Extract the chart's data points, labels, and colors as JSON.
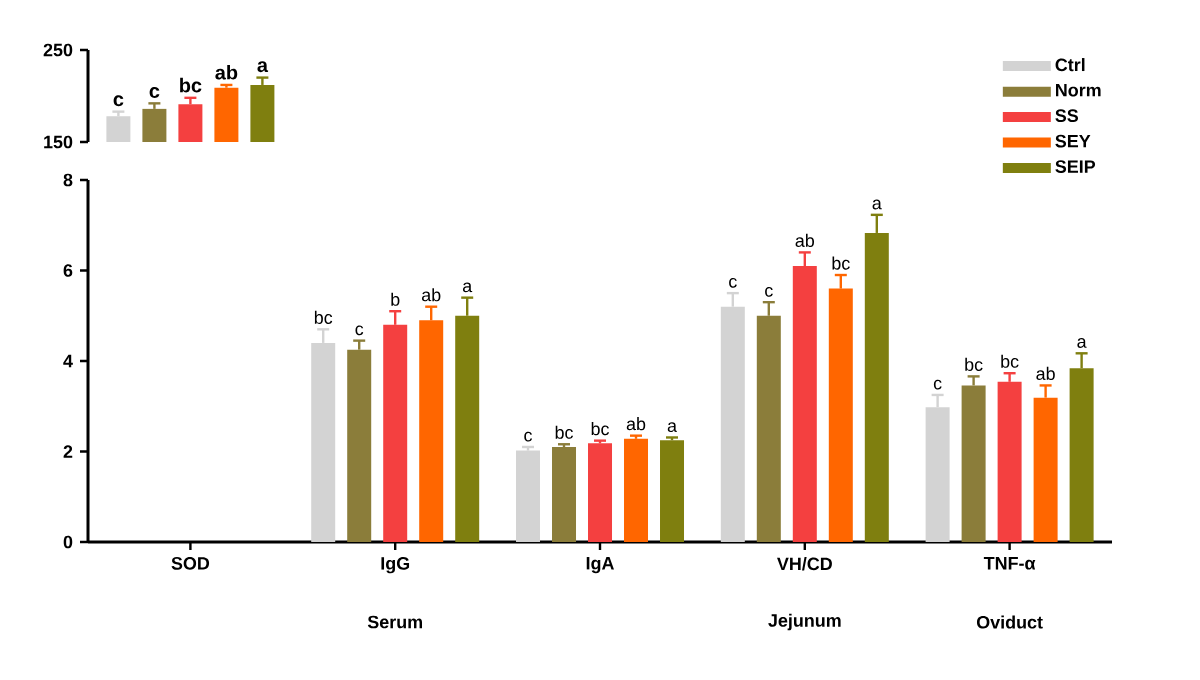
{
  "chart_data": [
    {
      "type": "bar",
      "categories": [
        "SOD",
        "IgG",
        "IgA",
        "VH/CD",
        "TNF-α"
      ],
      "ylim": [
        150,
        250
      ],
      "yticks": [
        150,
        250
      ],
      "tick_labels": "y",
      "series": [
        {
          "color": "#d3d3d3",
          "values": [
            178,
            null,
            null,
            null,
            null
          ],
          "errors": [
            5,
            null,
            null,
            null,
            null
          ]
        },
        {
          "color": "#8b7d3a",
          "values": [
            186,
            null,
            null,
            null,
            null
          ],
          "errors": [
            6,
            null,
            null,
            null,
            null
          ]
        },
        {
          "color": "#f44040",
          "values": [
            191,
            null,
            null,
            null,
            null
          ],
          "errors": [
            7,
            null,
            null,
            null,
            null
          ]
        },
        {
          "color": "#ff6600",
          "values": [
            209,
            null,
            null,
            null,
            null
          ],
          "errors": [
            3,
            null,
            null,
            null,
            null
          ]
        },
        {
          "color": "#7f7f0f",
          "values": [
            212,
            null,
            null,
            null,
            null
          ],
          "errors": [
            8,
            null,
            null,
            null,
            null
          ]
        }
      ],
      "annotations": [
        "c",
        "c",
        "bc",
        "ab",
        "a"
      ]
    },
    {
      "type": "bar",
      "categories": [
        "SOD",
        "IgG",
        "IgA",
        "VH/CD",
        "TNF-α"
      ],
      "ylim": [
        0,
        8
      ],
      "yticks": [
        0,
        2,
        4,
        6,
        8
      ],
      "legend": "top right",
      "series": [
        {
          "name": "Ctrl",
          "color": "#d3d3d3",
          "values": [
            null,
            4.4,
            2.02,
            5.2,
            2.98
          ],
          "errors": [
            null,
            0.3,
            0.08,
            0.3,
            0.27
          ]
        },
        {
          "name": "Norm",
          "color": "#8b7d3a",
          "values": [
            null,
            4.25,
            2.1,
            5.0,
            3.46
          ],
          "errors": [
            null,
            0.2,
            0.06,
            0.3,
            0.2
          ]
        },
        {
          "name": "SS",
          "color": "#f44040",
          "values": [
            null,
            4.8,
            2.18,
            6.1,
            3.54
          ],
          "errors": [
            null,
            0.3,
            0.06,
            0.3,
            0.19
          ]
        },
        {
          "name": "SEY",
          "color": "#ff6600",
          "values": [
            null,
            4.9,
            2.28,
            5.6,
            3.19
          ],
          "errors": [
            null,
            0.3,
            0.07,
            0.3,
            0.27
          ]
        },
        {
          "name": "SEIP",
          "color": "#7f7f0f",
          "values": [
            null,
            5.0,
            2.25,
            6.83,
            3.84
          ],
          "errors": [
            null,
            0.4,
            0.06,
            0.4,
            0.33
          ]
        }
      ],
      "annotations": [
        "bc",
        "c",
        "b",
        "ab",
        "a",
        "c",
        "bc",
        "bc",
        "ab",
        "a",
        "c",
        "c",
        "ab",
        "bc",
        "a",
        "c",
        "bc",
        "bc",
        "ab",
        "a",
        "Serum",
        "Jejunum",
        "Oviduct"
      ]
    }
  ]
}
